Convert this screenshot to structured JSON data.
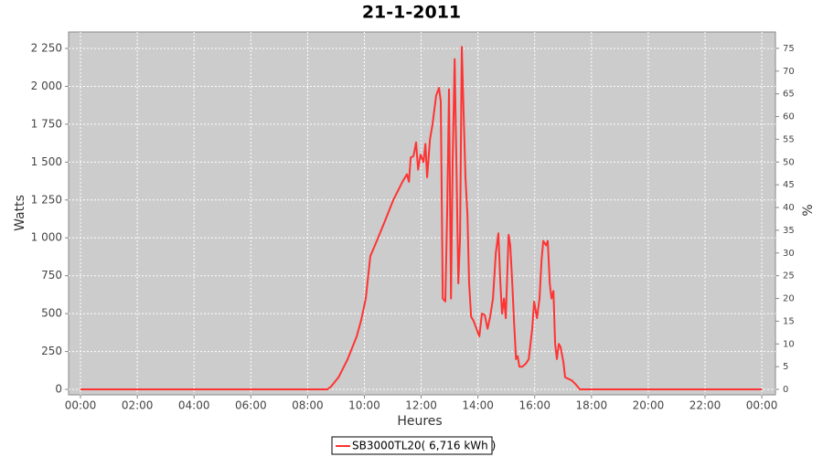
{
  "chart_data": {
    "type": "line",
    "title": "21-1-2011",
    "x_label": "Heures",
    "y_label": "Watts",
    "y2_label": "%",
    "grid": true,
    "background": "#cccccc",
    "legend_position": "bottom",
    "xlim": [
      -0.42,
      24.48
    ],
    "xticks": [
      {
        "value": 0,
        "label": "00:00"
      },
      {
        "value": 2,
        "label": "02:00"
      },
      {
        "value": 4,
        "label": "04:00"
      },
      {
        "value": 6,
        "label": "06:00"
      },
      {
        "value": 8,
        "label": "08:00"
      },
      {
        "value": 10,
        "label": "10:00"
      },
      {
        "value": 12,
        "label": "12:00"
      },
      {
        "value": 14,
        "label": "14:00"
      },
      {
        "value": 16,
        "label": "16:00"
      },
      {
        "value": 18,
        "label": "18:00"
      },
      {
        "value": 20,
        "label": "20:00"
      },
      {
        "value": 22,
        "label": "22:00"
      },
      {
        "value": 24,
        "label": "00:00"
      }
    ],
    "ylim": [
      -36,
      2358.6
    ],
    "yticks": [
      0,
      250,
      500,
      750,
      {
        "value": 1000,
        "label": "1 000"
      },
      {
        "value": 1250,
        "label": "1 250"
      },
      {
        "value": 1500,
        "label": "1 500"
      },
      {
        "value": 1750,
        "label": "1 750"
      },
      {
        "value": 2000,
        "label": "2 000"
      },
      {
        "value": 2250,
        "label": "2 250"
      }
    ],
    "y2lim": [
      -1.2,
      78.6
    ],
    "y2ticks": [
      0,
      5,
      10,
      15,
      20,
      25,
      30,
      35,
      40,
      45,
      50,
      55,
      60,
      65,
      70,
      75
    ],
    "x": [
      0,
      8.7,
      8.83,
      9.09,
      9.41,
      9.73,
      9.89,
      10.05,
      10.21,
      10.37,
      10.7,
      11.02,
      11.34,
      11.5,
      11.57,
      11.63,
      11.73,
      11.82,
      11.89,
      11.98,
      12.08,
      12.15,
      12.21,
      12.31,
      12.4,
      12.53,
      12.63,
      12.69,
      12.76,
      12.85,
      12.92,
      12.98,
      13.05,
      13.11,
      13.18,
      13.24,
      13.31,
      13.37,
      13.43,
      13.5,
      13.56,
      13.63,
      13.69,
      13.76,
      13.85,
      13.95,
      14.05,
      14.14,
      14.24,
      14.34,
      14.43,
      14.53,
      14.63,
      14.72,
      14.79,
      14.85,
      14.92,
      14.98,
      15.08,
      15.14,
      15.21,
      15.27,
      15.34,
      15.4,
      15.46,
      15.56,
      15.69,
      15.79,
      15.91,
      15.98,
      16.08,
      16.17,
      16.24,
      16.3,
      16.4,
      16.46,
      16.53,
      16.59,
      16.66,
      16.72,
      16.78,
      16.85,
      16.91,
      17.01,
      17.07,
      17.3,
      17.46,
      17.59,
      24.0
    ],
    "series": [
      {
        "name": "SB3000TL20( 6,716 kWh )",
        "color": "#ff3333",
        "values": [
          0,
          0,
          20,
          80,
          200,
          350,
          460,
          600,
          880,
          950,
          1100,
          1250,
          1370,
          1420,
          1370,
          1530,
          1540,
          1630,
          1450,
          1550,
          1500,
          1620,
          1400,
          1650,
          1750,
          1940,
          1990,
          1900,
          600,
          580,
          1200,
          1980,
          600,
          1500,
          2180,
          1500,
          700,
          1000,
          2260,
          1800,
          1400,
          1150,
          700,
          480,
          450,
          400,
          350,
          500,
          490,
          400,
          480,
          600,
          900,
          1030,
          700,
          500,
          600,
          470,
          1020,
          950,
          700,
          450,
          200,
          220,
          150,
          150,
          170,
          200,
          400,
          580,
          470,
          600,
          850,
          980,
          950,
          980,
          700,
          600,
          650,
          300,
          200,
          300,
          280,
          180,
          80,
          60,
          30,
          0,
          0
        ]
      }
    ]
  }
}
